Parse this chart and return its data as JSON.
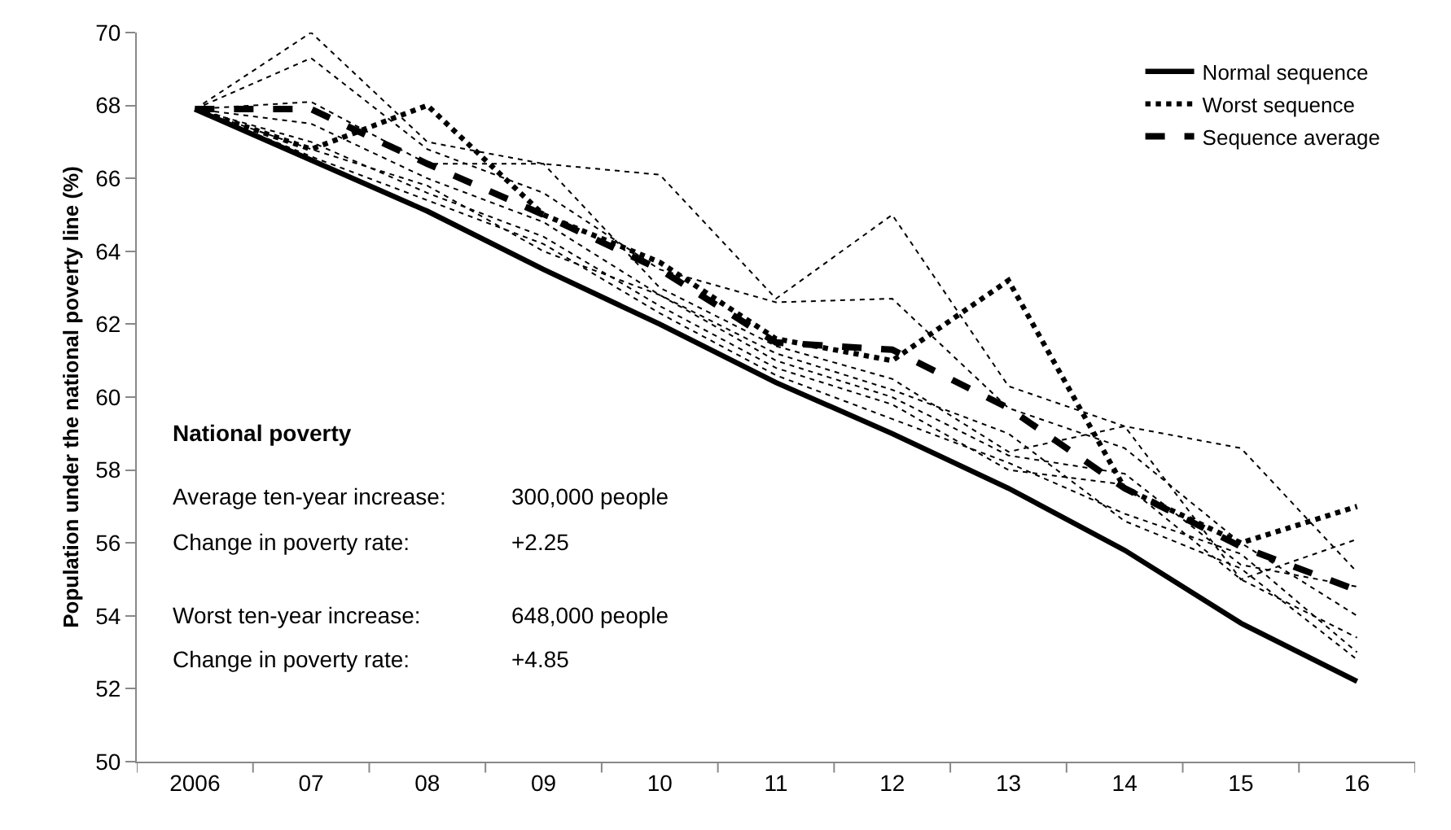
{
  "chart_data": {
    "type": "line",
    "ylabel": "Population under the national poverty line (%)",
    "categories": [
      "2006",
      "07",
      "08",
      "09",
      "10",
      "11",
      "12",
      "13",
      "14",
      "15",
      "16"
    ],
    "ylim": [
      50,
      70
    ],
    "yticks": [
      50,
      52,
      54,
      56,
      58,
      60,
      62,
      64,
      66,
      68,
      70
    ],
    "grid": false,
    "legend": "top right",
    "marker": "none",
    "series": [
      {
        "color": "#000000",
        "line_style": "dotted",
        "values": [
          67.9,
          70.0,
          67.0,
          66.4,
          66.1,
          62.7,
          65.0,
          60.3,
          59.2,
          58.6,
          55.2
        ]
      },
      {
        "color": "#000000",
        "line_style": "dotted",
        "values": [
          67.9,
          69.3,
          66.8,
          65.6,
          63.5,
          62.6,
          62.7,
          59.7,
          58.6,
          56.0,
          54.0
        ]
      },
      {
        "color": "#000000",
        "line_style": "dotted",
        "values": [
          67.9,
          68.1,
          66.4,
          66.4,
          63.0,
          61.4,
          60.5,
          58.5,
          59.2,
          55.0,
          56.1
        ]
      },
      {
        "color": "#000000",
        "line_style": "dotted",
        "values": [
          67.9,
          67.5,
          66.0,
          64.8,
          62.8,
          61.0,
          60.0,
          58.4,
          57.9,
          55.4,
          54.8
        ]
      },
      {
        "color": "#000000",
        "line_style": "dotted",
        "values": [
          67.9,
          67.0,
          65.6,
          64.4,
          62.5,
          60.8,
          59.8,
          58.0,
          57.6,
          55.0,
          53.4
        ]
      },
      {
        "color": "#000000",
        "line_style": "dotted",
        "values": [
          67.9,
          66.6,
          65.4,
          64.2,
          62.3,
          60.6,
          59.4,
          58.2,
          56.8,
          55.7,
          53.0
        ]
      },
      {
        "color": "#000000",
        "line_style": "dotted",
        "values": [
          67.9,
          66.8,
          65.8,
          64.0,
          62.8,
          61.2,
          60.2,
          59.0,
          56.6,
          55.3,
          52.8
        ]
      },
      {
        "name": "Normal sequence",
        "color": "#000000",
        "line_style": "solid",
        "values": [
          67.9,
          66.5,
          65.1,
          63.5,
          62.0,
          60.4,
          59.0,
          57.5,
          55.8,
          53.8,
          52.2
        ]
      },
      {
        "name": "Worst sequence",
        "color": "#000000",
        "line_style": "dotted",
        "values": [
          67.9,
          66.8,
          68.0,
          65.0,
          63.7,
          61.6,
          61.0,
          63.2,
          57.5,
          56.0,
          57.0
        ]
      },
      {
        "name": "Sequence average",
        "color": "#000000",
        "line_style": "dashed",
        "values": [
          67.9,
          67.9,
          66.4,
          65.0,
          63.5,
          61.5,
          61.3,
          59.7,
          57.5,
          55.9,
          54.7
        ]
      }
    ],
    "annotations": [
      "National poverty",
      "Average ten-year increase:",
      "300,000 people",
      "Change in poverty rate:",
      "+2.25",
      "Worst ten-year increase:",
      "648,000 people",
      "Change in poverty rate:",
      "+4.85"
    ]
  }
}
